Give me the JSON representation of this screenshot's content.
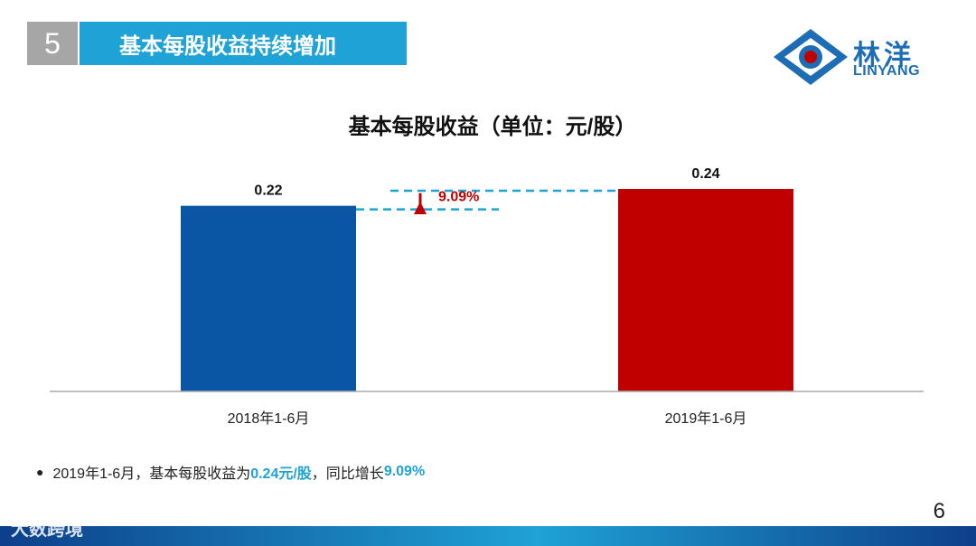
{
  "header": {
    "section_number": "5",
    "title": "基本每股收益持续增加"
  },
  "logo": {
    "name_cn": "林洋",
    "name_en": "LINYANG"
  },
  "chart_data": {
    "type": "bar",
    "title": "基本每股收益（单位：元/股）",
    "categories": [
      "2018年1-6月",
      "2019年1-6月"
    ],
    "values": [
      0.22,
      0.24
    ],
    "value_labels": [
      "0.22",
      "0.24"
    ],
    "colors": [
      "#0b56a4",
      "#c00000"
    ],
    "growth_label": "9.09%",
    "growth_color": "#c00000",
    "ylim": [
      0,
      0.24
    ],
    "xlabel": "",
    "ylabel": ""
  },
  "note": {
    "bullet": "●",
    "part1": "2019年1-6月，基本每股收益为",
    "highlight1": "0.24元/股",
    "part2": "，同比增长",
    "highlight2": "9.09%"
  },
  "page_number": "6",
  "watermark": "大数跨境",
  "colors": {
    "accent": "#1fa2d6",
    "grey_tab": "#a6a6a6",
    "bar_2018": "#0b56a4",
    "bar_2019": "#c00000"
  }
}
